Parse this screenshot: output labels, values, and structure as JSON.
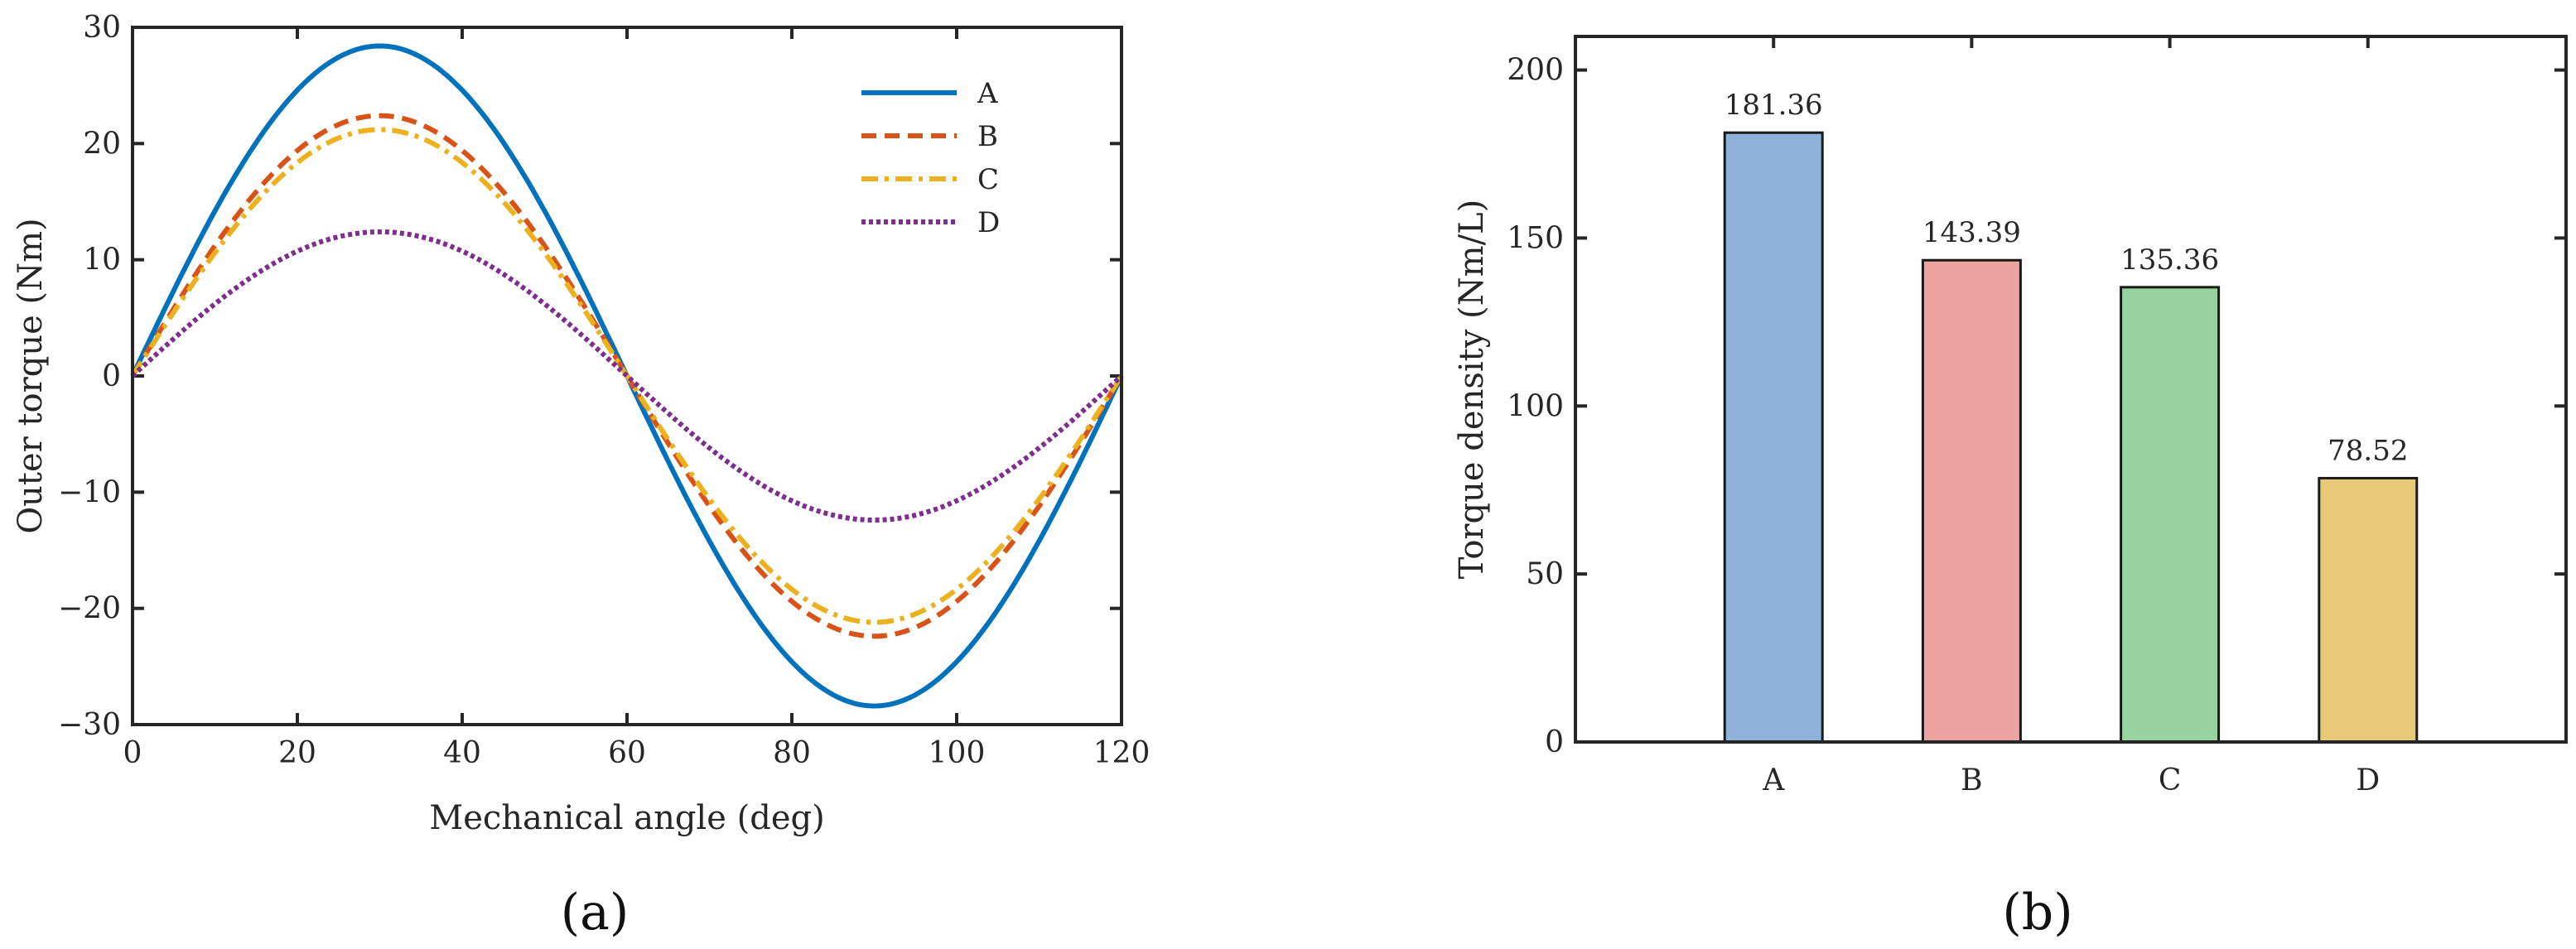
{
  "chart_data": [
    {
      "type": "line",
      "panel_label": "(a)",
      "xlabel": "Mechanical angle (deg)",
      "ylabel": "Outer torque (Nm)",
      "xlim": [
        0,
        120
      ],
      "ylim": [
        -30,
        30
      ],
      "xticks": [
        0,
        20,
        40,
        60,
        80,
        100,
        120
      ],
      "yticks": [
        -30,
        -20,
        -10,
        0,
        10,
        20,
        30
      ],
      "xtick_labels": [
        "0",
        "20",
        "40",
        "60",
        "80",
        "100",
        "120"
      ],
      "ytick_labels": [
        "−30",
        "−20",
        "−10",
        "0",
        "10",
        "20",
        "30"
      ],
      "legend_position": "top-right",
      "series": [
        {
          "name": "A",
          "color": "#0072BD",
          "style": "solid",
          "x": [
            0,
            10,
            20,
            30,
            31,
            40,
            50,
            60,
            70,
            80,
            89,
            90,
            100,
            110,
            120
          ],
          "values": [
            0,
            14.3,
            24.5,
            28.3,
            28.4,
            24.6,
            14.2,
            0,
            -14.2,
            -24.6,
            -28.4,
            -28.3,
            -24.5,
            -14.3,
            0
          ]
        },
        {
          "name": "B",
          "color": "#D95319",
          "style": "dashed",
          "x": [
            0,
            10,
            20,
            30,
            40,
            50,
            60,
            70,
            80,
            90,
            100,
            110,
            120
          ],
          "values": [
            0,
            11.2,
            19.4,
            22.4,
            19.4,
            11.2,
            0,
            -11.2,
            -19.4,
            -22.4,
            -19.4,
            -11.2,
            0
          ]
        },
        {
          "name": "C",
          "color": "#EDB120",
          "style": "dash-dot",
          "x": [
            0,
            10,
            20,
            30,
            40,
            50,
            60,
            70,
            80,
            90,
            100,
            110,
            120
          ],
          "values": [
            0,
            10.6,
            18.4,
            21.2,
            18.4,
            10.6,
            0,
            -10.6,
            -18.4,
            -21.2,
            -18.4,
            -10.6,
            0
          ]
        },
        {
          "name": "D",
          "color": "#7E2F8E",
          "style": "dotted",
          "x": [
            0,
            10,
            20,
            30,
            40,
            50,
            60,
            70,
            80,
            90,
            100,
            110,
            120
          ],
          "values": [
            0,
            6.2,
            10.7,
            12.4,
            10.7,
            6.2,
            0,
            -6.2,
            -10.7,
            -12.4,
            -10.7,
            -6.2,
            0
          ]
        }
      ]
    },
    {
      "type": "bar",
      "panel_label": "(b)",
      "xlabel": "",
      "ylabel": "Torque density (Nm/L)",
      "ylim": [
        0,
        210
      ],
      "yticks": [
        0,
        50,
        100,
        150,
        200
      ],
      "ytick_labels": [
        "0",
        "50",
        "100",
        "150",
        "200"
      ],
      "categories": [
        "A",
        "B",
        "C",
        "D"
      ],
      "values": [
        181.36,
        143.39,
        135.36,
        78.52
      ],
      "data_labels": [
        "181.36",
        "143.39",
        "135.36",
        "78.52"
      ],
      "colors": [
        "#8EB2D9",
        "#EDA2A2",
        "#96D3A0",
        "#E8C978"
      ]
    }
  ]
}
